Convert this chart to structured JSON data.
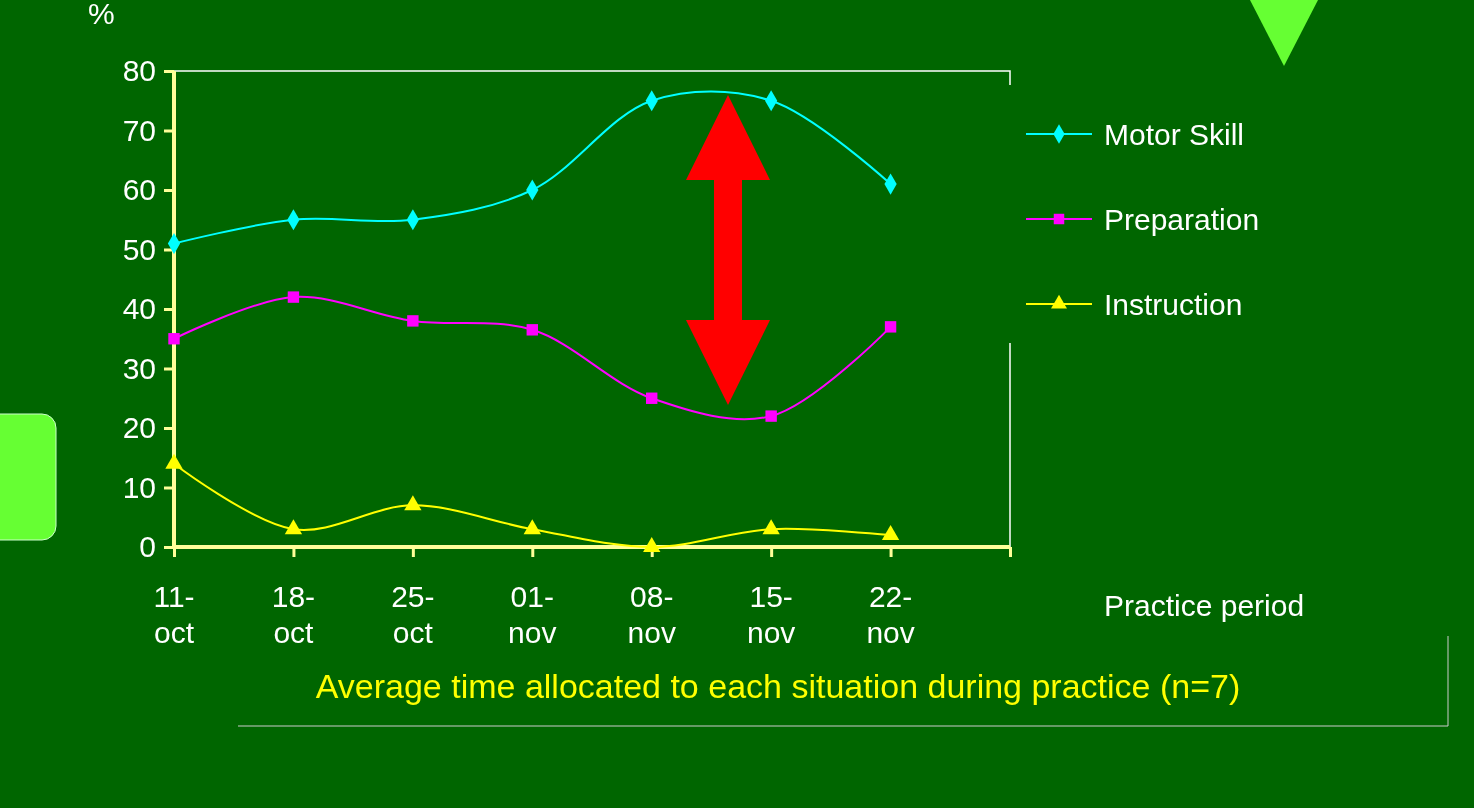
{
  "chart_data": {
    "type": "line",
    "title": "Average time allocated to each situation during practice (n=7)",
    "xlabel": "Practice period",
    "ylabel": "%",
    "categories": [
      "11-oct",
      "18-oct",
      "25-oct",
      "01-nov",
      "08-nov",
      "15-nov",
      "22-nov"
    ],
    "ylim": [
      0,
      80
    ],
    "yticks": [
      0,
      10,
      20,
      30,
      40,
      50,
      60,
      70,
      80
    ],
    "grid": false,
    "legend": "right",
    "series": [
      {
        "name": "Motor Skill",
        "color": "#00ffff",
        "marker": "diamond",
        "values": [
          51,
          55,
          55,
          60,
          75,
          75,
          61
        ]
      },
      {
        "name": "Preparation",
        "color": "#ff00ff",
        "marker": "square",
        "values": [
          35,
          42,
          38,
          36.5,
          25,
          22,
          37
        ]
      },
      {
        "name": "Instruction",
        "color": "#ffff00",
        "marker": "triangle",
        "values": [
          14,
          3,
          7,
          3,
          0,
          3,
          2
        ]
      }
    ]
  }
}
